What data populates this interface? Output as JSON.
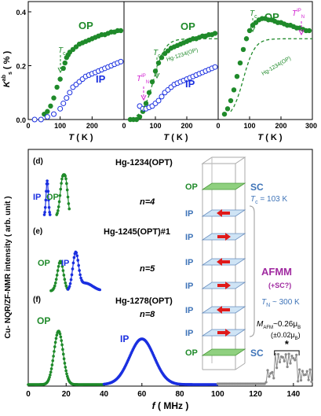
{
  "colors": {
    "op": "#1f8a2a",
    "ip": "#1a2fe0",
    "tn": "#d11fd1",
    "grey": "#8a8a8a",
    "afmm": "#a02aa0",
    "sc": "#3f74b8"
  },
  "top": {
    "ylabel_main": "K",
    "ylabel_sup": "ab",
    "ylabel_sub": "s",
    "ylabel_unit": " ( % )",
    "yticks": [
      "0.4",
      "0.2",
      "0.0"
    ],
    "xlabel_main": "T",
    "xlabel_unit": " ( K )",
    "panels": [
      {
        "op": "OP",
        "ip": "IP",
        "tc": "T",
        "tc_sub": "c",
        "xticks": [
          "0",
          "100",
          "200"
        ],
        "op_x": [
          50,
          60,
          70,
          80,
          90,
          100,
          110,
          115,
          120,
          125,
          130,
          140,
          150,
          160,
          170,
          180,
          190,
          200,
          210,
          220,
          230,
          240,
          250,
          260,
          270,
          280,
          290
        ],
        "op_y": [
          0.02,
          0.03,
          0.05,
          0.08,
          0.12,
          0.15,
          0.19,
          0.21,
          0.23,
          0.24,
          0.25,
          0.26,
          0.27,
          0.28,
          0.285,
          0.29,
          0.295,
          0.3,
          0.305,
          0.31,
          0.315,
          0.315,
          0.32,
          0.325,
          0.325,
          0.33,
          0.33
        ],
        "ip_x": [
          20,
          40,
          60,
          80,
          100,
          110,
          120,
          130,
          140,
          150,
          160,
          170,
          180,
          190,
          200,
          210,
          220,
          230,
          240,
          250,
          260,
          270,
          280,
          290
        ],
        "ip_y": [
          0.0,
          0.0,
          0.01,
          0.02,
          0.04,
          0.06,
          0.08,
          0.1,
          0.12,
          0.13,
          0.14,
          0.15,
          0.16,
          0.165,
          0.17,
          0.175,
          0.18,
          0.185,
          0.19,
          0.195,
          0.2,
          0.205,
          0.21,
          0.215
        ]
      },
      {
        "op": "OP",
        "ip": "IP",
        "tc": "T",
        "tc_sub": "c",
        "tn": "T",
        "tn_sub": "N",
        "tn_sup": "IP",
        "curve_label": "Hg-1234(OP)",
        "xticks": [
          "0",
          "100",
          "200"
        ],
        "op_x": [
          20,
          30,
          40,
          50,
          60,
          70,
          80,
          90,
          100,
          110,
          120,
          130,
          140,
          150,
          160,
          170,
          180,
          190,
          200,
          210,
          220,
          230,
          240,
          250,
          260,
          270,
          280,
          290
        ],
        "op_y": [
          0.0,
          0.0,
          0.0,
          0.01,
          0.03,
          0.06,
          0.1,
          0.14,
          0.18,
          0.21,
          0.23,
          0.245,
          0.255,
          0.265,
          0.27,
          0.275,
          0.28,
          0.285,
          0.29,
          0.295,
          0.3,
          0.3,
          0.305,
          0.31,
          0.31,
          0.315,
          0.315,
          0.32
        ],
        "ip_x": [
          50,
          60,
          70,
          80,
          90,
          100,
          110,
          120,
          130,
          140,
          150,
          160,
          170,
          180,
          190,
          200,
          210,
          220,
          230,
          240,
          250,
          260,
          270,
          280,
          290
        ],
        "ip_y": [
          0.05,
          0.04,
          0.04,
          0.045,
          0.05,
          0.06,
          0.07,
          0.085,
          0.1,
          0.11,
          0.12,
          0.13,
          0.135,
          0.14,
          0.145,
          0.15,
          0.155,
          0.16,
          0.165,
          0.17,
          0.175,
          0.18,
          0.185,
          0.19,
          0.195
        ]
      },
      {
        "tc": "T",
        "tc_sub": "c",
        "op": "OP",
        "tn": "T",
        "tn_sub": "N",
        "tn_sup": "IP",
        "curve_label": "Hg-1234(OP)",
        "xticks": [
          "0",
          "100",
          "200",
          "300"
        ],
        "op_x": [
          20,
          30,
          40,
          50,
          60,
          70,
          80,
          90,
          100,
          110,
          120,
          130,
          140,
          150,
          160,
          170,
          180,
          190,
          200,
          210,
          220,
          230,
          240,
          250,
          260,
          270,
          280,
          290
        ],
        "op_y": [
          0.02,
          0.04,
          0.07,
          0.11,
          0.16,
          0.21,
          0.26,
          0.3,
          0.33,
          0.35,
          0.36,
          0.37,
          0.375,
          0.375,
          0.37,
          0.37,
          0.365,
          0.36,
          0.36,
          0.355,
          0.35,
          0.35,
          0.345,
          0.34,
          0.34,
          0.335,
          0.33,
          0.33
        ]
      }
    ]
  },
  "bottom": {
    "ylabel": "Cu- NQR/ZF-NMR intensity ( arb. unit )",
    "xlabel_main": "f",
    "xlabel_unit": " ( MHz )",
    "xticks": [
      "0",
      "20",
      "40",
      "60",
      "80",
      "100",
      "120",
      "140"
    ],
    "panels": [
      {
        "tag": "(d)",
        "title": "Hg-1234(OPT)",
        "n": "n=4",
        "ip": "IP",
        "op": "OP"
      },
      {
        "tag": "(e)",
        "title": "Hg-1245(OPT)#1",
        "n": "n=5",
        "op": "OP",
        "ip": "IP"
      },
      {
        "tag": "(f)",
        "title": "Hg-1278(OPT)",
        "n": "n=8",
        "op": "OP",
        "ip": "IP",
        "star": "*"
      }
    ],
    "diagram": {
      "layers": [
        "OP",
        "IP",
        "IP",
        "IP",
        "IP",
        "IP",
        "IP",
        "OP"
      ],
      "sc_top": "SC",
      "sc_bot": "SC",
      "tc_text": "T",
      "tc_sub": "c",
      "tc_val": " = 103 K",
      "afmm": "AFMM",
      "afmm_sub": "(+SC?)",
      "tn_text": "T",
      "tn_sub": "N",
      "tn_val": " ~ 300 K",
      "m_text": "M",
      "m_sub": "AFM",
      "m_val": "~0.26μ",
      "m_b": "B",
      "m_err": "(±0.02μ",
      "m_err_b": "B",
      "m_err_close": ")"
    }
  }
}
